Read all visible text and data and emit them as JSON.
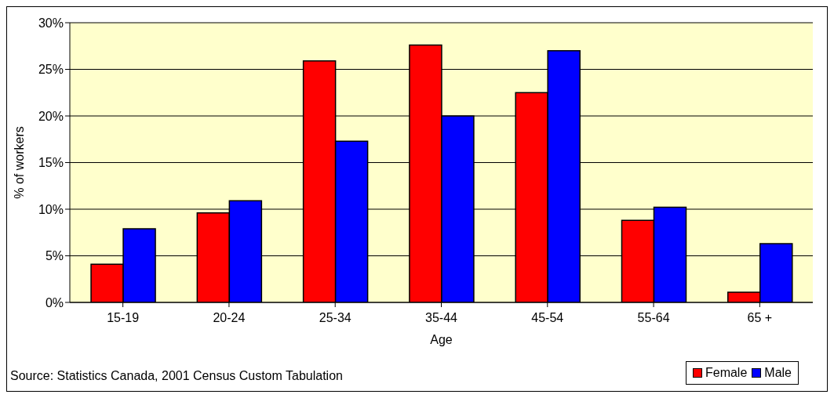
{
  "chart_data": {
    "type": "bar",
    "xlabel": "Age",
    "ylabel": "% of workers",
    "categories": [
      "15-19",
      "20-24",
      "25-34",
      "35-44",
      "45-54",
      "55-64",
      "65 +"
    ],
    "series": [
      {
        "name": "Female",
        "color": "#ff0000",
        "values": [
          4.1,
          9.6,
          25.9,
          27.6,
          22.5,
          8.8,
          1.1
        ]
      },
      {
        "name": "Male",
        "color": "#0000ff",
        "values": [
          7.9,
          10.9,
          17.3,
          20.0,
          27.0,
          10.2,
          6.3
        ]
      }
    ],
    "ylim": [
      0,
      30
    ],
    "yticks": [
      {
        "value": 0,
        "label": "0%"
      },
      {
        "value": 5,
        "label": "5%"
      },
      {
        "value": 10,
        "label": "10%"
      },
      {
        "value": 15,
        "label": "15%"
      },
      {
        "value": 20,
        "label": "20%"
      },
      {
        "value": 25,
        "label": "25%"
      },
      {
        "value": 30,
        "label": "30%"
      }
    ],
    "grid": "y",
    "legend": "bottom right",
    "annotations": [
      "Source: Statistics Canada, 2001 Census Custom Tabulation"
    ]
  }
}
